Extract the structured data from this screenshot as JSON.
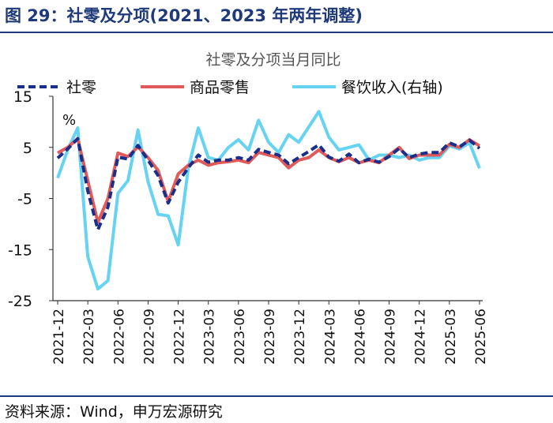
{
  "header": {
    "figure_title": "图 29：社零及分项(2021、2023 年两年调整)"
  },
  "footer": {
    "source": "资料来源：Wind，申万宏源研究"
  },
  "chart_data": {
    "type": "line",
    "title": "社零及分项当月同比",
    "unit_label": "%",
    "legend_position": "top",
    "x": [
      "2021-12",
      "2022-01",
      "2022-02",
      "2022-03",
      "2022-04",
      "2022-05",
      "2022-06",
      "2022-07",
      "2022-08",
      "2022-09",
      "2022-10",
      "2022-11",
      "2022-12",
      "2023-01",
      "2023-02",
      "2023-03",
      "2023-04",
      "2023-05",
      "2023-06",
      "2023-07",
      "2023-08",
      "2023-09",
      "2023-10",
      "2023-11",
      "2023-12",
      "2024-01",
      "2024-02",
      "2024-03",
      "2024-04",
      "2024-05",
      "2024-06",
      "2024-07",
      "2024-08",
      "2024-09",
      "2024-10",
      "2024-11",
      "2024-12",
      "2025-01",
      "2025-02",
      "2025-03",
      "2025-04",
      "2025-05",
      "2025-06"
    ],
    "x_tick_labels": [
      "2021-12",
      "2022-03",
      "2022-06",
      "2022-09",
      "2022-12",
      "2023-03",
      "2023-06",
      "2023-09",
      "2023-12",
      "2024-03",
      "2024-06",
      "2024-09",
      "2024-12",
      "2025-03",
      "2025-06"
    ],
    "y_left": {
      "range": [
        -25,
        15
      ],
      "ticks": [
        15,
        5,
        -5,
        -15,
        -25
      ]
    },
    "grid": false,
    "series": [
      {
        "name": "社零",
        "axis": "left",
        "style": "dashed",
        "color": "#1a2f8a",
        "values": [
          2.9,
          4.7,
          6.7,
          -3.5,
          -11.1,
          -6.7,
          3.1,
          2.7,
          5.4,
          2.5,
          -0.5,
          -5.9,
          -1.8,
          1.0,
          3.5,
          2.1,
          2.5,
          2.5,
          3.0,
          2.5,
          4.6,
          4.0,
          3.5,
          1.8,
          3.0,
          4.2,
          5.5,
          3.1,
          2.3,
          3.7,
          2.0,
          2.7,
          2.1,
          3.2,
          4.8,
          3.0,
          3.7,
          4.0,
          4.0,
          5.9,
          5.1,
          6.4,
          4.8
        ]
      },
      {
        "name": "商品零售",
        "axis": "left",
        "style": "solid",
        "color": "#e05a5a",
        "values": [
          3.9,
          5.0,
          6.7,
          -1.5,
          -9.7,
          -5.0,
          3.9,
          3.2,
          5.1,
          3.0,
          0.5,
          -5.6,
          -0.2,
          1.5,
          2.5,
          1.5,
          2.0,
          2.2,
          2.5,
          2.0,
          4.0,
          3.5,
          3.0,
          1.0,
          2.5,
          3.0,
          4.5,
          3.0,
          2.2,
          3.0,
          2.0,
          2.5,
          2.0,
          3.5,
          5.0,
          2.8,
          3.5,
          3.5,
          3.5,
          5.6,
          5.0,
          6.5,
          5.3
        ]
      },
      {
        "name": "餐饮收入(右轴)",
        "axis": "right",
        "style": "solid",
        "color": "#66d3f2",
        "values": [
          -1.0,
          4.5,
          8.8,
          -16.4,
          -22.7,
          -21.1,
          -4.0,
          -1.5,
          8.4,
          -1.7,
          -8.1,
          -8.4,
          -14.1,
          0.9,
          8.8,
          3.0,
          2.5,
          5.0,
          6.5,
          4.5,
          10.3,
          6.0,
          4.0,
          7.5,
          6.0,
          9.0,
          12.0,
          7.0,
          4.5,
          5.0,
          5.5,
          2.5,
          3.5,
          3.5,
          3.0,
          3.5,
          2.5,
          3.0,
          3.0,
          5.3,
          4.7,
          5.9,
          0.9
        ]
      }
    ]
  }
}
